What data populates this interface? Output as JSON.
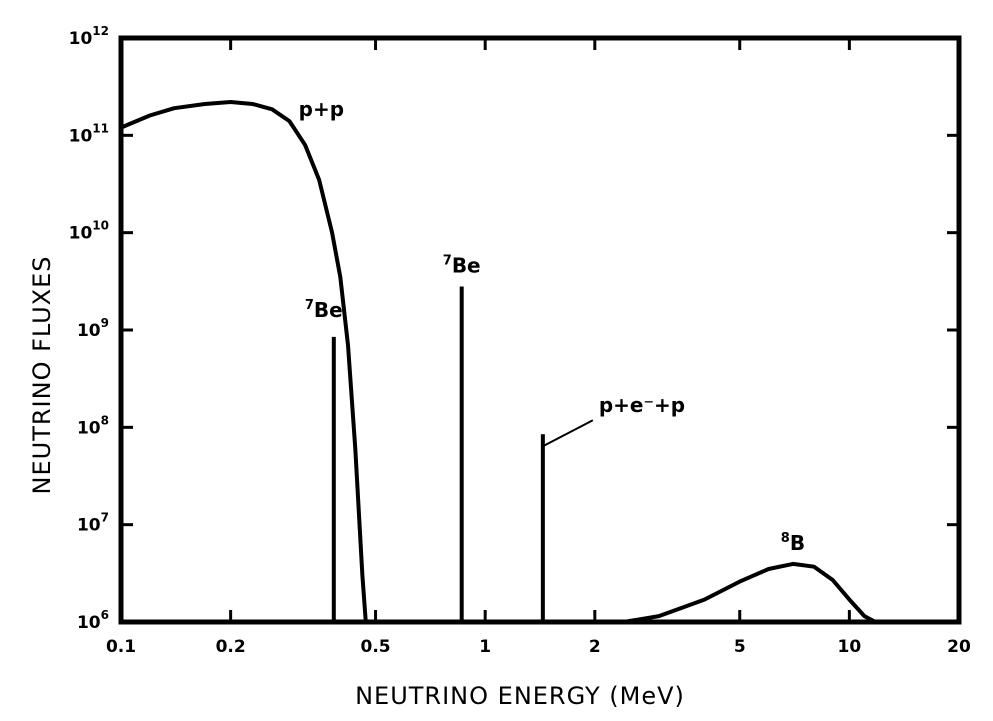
{
  "chart_data": {
    "type": "line",
    "xlabel": "NEUTRINO  ENERGY  (MeV)",
    "ylabel": "NEUTRINO  FLUXES",
    "xscale": "log",
    "yscale": "log",
    "xlim": [
      0.1,
      20
    ],
    "ylim": [
      1000000,
      1000000000000
    ],
    "x_ticks": [
      {
        "value": 0.1,
        "label": "0.1"
      },
      {
        "value": 0.2,
        "label": "0.2"
      },
      {
        "value": 0.5,
        "label": "0.5"
      },
      {
        "value": 1,
        "label": "1"
      },
      {
        "value": 2,
        "label": "2"
      },
      {
        "value": 5,
        "label": "5"
      },
      {
        "value": 10,
        "label": "10"
      },
      {
        "value": 20,
        "label": "20"
      }
    ],
    "y_ticks": [
      {
        "value": 1000000,
        "base": "10",
        "exp": "6"
      },
      {
        "value": 10000000,
        "base": "10",
        "exp": "7"
      },
      {
        "value": 100000000,
        "base": "10",
        "exp": "8"
      },
      {
        "value": 1000000000,
        "base": "10",
        "exp": "9"
      },
      {
        "value": 10000000000,
        "base": "10",
        "exp": "10"
      },
      {
        "value": 100000000000,
        "base": "10",
        "exp": "11"
      },
      {
        "value": 1000000000000,
        "base": "10",
        "exp": "12"
      }
    ],
    "grid": false,
    "series": [
      {
        "name": "p+p",
        "kind": "curve",
        "points": [
          [
            0.1,
            120000000000
          ],
          [
            0.12,
            160000000000
          ],
          [
            0.14,
            190000000000
          ],
          [
            0.17,
            210000000000
          ],
          [
            0.2,
            220000000000
          ],
          [
            0.23,
            210000000000
          ],
          [
            0.26,
            185000000000
          ],
          [
            0.29,
            140000000000
          ],
          [
            0.32,
            80000000000
          ],
          [
            0.35,
            35000000000
          ],
          [
            0.38,
            10000000000
          ],
          [
            0.4,
            3500000000
          ],
          [
            0.42,
            700000000
          ],
          [
            0.44,
            60000000
          ],
          [
            0.46,
            3000000
          ],
          [
            0.47,
            1000000
          ]
        ]
      },
      {
        "name": "7Be",
        "label_sup": "7",
        "label_text": "Be",
        "kind": "line",
        "energy": 0.384,
        "flux": 850000000
      },
      {
        "name": "7Be",
        "label_sup": "7",
        "label_text": "Be",
        "kind": "line",
        "energy": 0.862,
        "flux": 2800000000
      },
      {
        "name": "p+e⁻+p",
        "label_text": "p+e⁻+p",
        "kind": "line",
        "energy": 1.44,
        "flux": 85000000
      },
      {
        "name": "8B",
        "label_sup": "8",
        "label_text": "B",
        "kind": "curve",
        "points": [
          [
            2.4,
            1000000
          ],
          [
            3,
            1150000
          ],
          [
            4,
            1700000
          ],
          [
            5,
            2600000
          ],
          [
            6,
            3500000
          ],
          [
            7,
            3950000
          ],
          [
            8,
            3700000
          ],
          [
            9,
            2700000
          ],
          [
            10,
            1700000
          ],
          [
            11,
            1150000
          ],
          [
            11.8,
            1000000
          ]
        ]
      }
    ]
  }
}
